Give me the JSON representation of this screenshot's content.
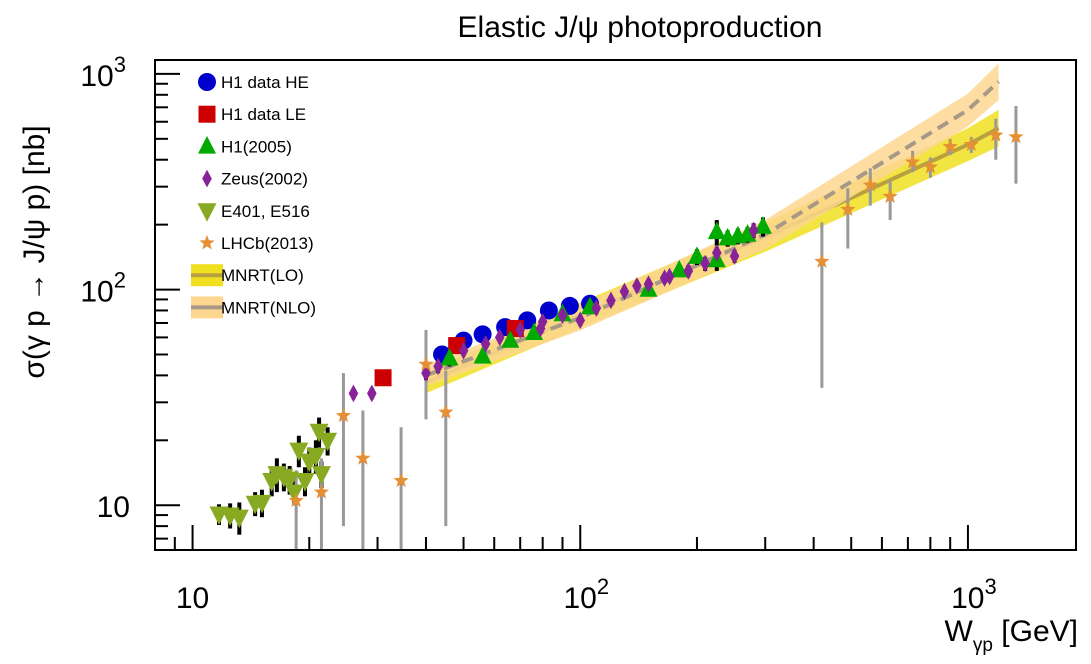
{
  "chart_data": {
    "type": "scatter",
    "title": "Elastic J/ψ photoproduction",
    "xlabel_main": "W",
    "xlabel_sub": "γp",
    "xlabel_unit": " [GeV]",
    "ylabel": "σ(γ p → J/ψ p) [nb]",
    "x_scale": "log",
    "y_scale": "log",
    "xlim": [
      8,
      1900
    ],
    "ylim": [
      6.2,
      1160
    ],
    "grid": false,
    "legend_placement": "top-left",
    "x_ticks": [
      {
        "base": "10",
        "exp": ""
      },
      {
        "base": "10",
        "exp": "2"
      },
      {
        "base": "10",
        "exp": "3"
      }
    ],
    "y_ticks": [
      {
        "base": "10",
        "exp": ""
      },
      {
        "base": "10",
        "exp": "2"
      },
      {
        "base": "10",
        "exp": "3"
      }
    ],
    "legend": [
      {
        "label": "H1 data HE",
        "series": 0
      },
      {
        "label": "H1 data LE",
        "series": 1
      },
      {
        "label": "H1(2005)",
        "series": 2
      },
      {
        "label": "Zeus(2002)",
        "series": 3
      },
      {
        "label": "E401, E516",
        "series": 4
      },
      {
        "label": "LHCb(2013)",
        "series": 5
      },
      {
        "label": "MNRT(LO)",
        "series": 6
      },
      {
        "label": "MNRT(NLO)",
        "series": 7
      }
    ],
    "series": [
      {
        "name": "H1 data HE",
        "marker": "circle",
        "color": "#0000cc",
        "errcolor": "#000000",
        "points": [
          [
            44,
            50,
            3
          ],
          [
            50,
            58,
            3.5
          ],
          [
            56,
            62,
            4
          ],
          [
            64,
            67,
            4
          ],
          [
            73,
            72,
            4.5
          ],
          [
            83,
            80,
            5
          ],
          [
            94,
            84,
            5
          ],
          [
            106,
            86,
            5
          ]
        ]
      },
      {
        "name": "H1 data LE",
        "marker": "square",
        "color": "#cc0000",
        "errcolor": "#000000",
        "points": [
          [
            31,
            39,
            3
          ],
          [
            48,
            55,
            3.5
          ],
          [
            68,
            66,
            4
          ]
        ]
      },
      {
        "name": "H1(2005)",
        "marker": "triangle-up",
        "color": "#00aa00",
        "errcolor": "#000000",
        "points": [
          [
            46,
            48,
            4
          ],
          [
            56,
            49,
            3
          ],
          [
            66,
            58,
            4
          ],
          [
            76,
            63,
            4
          ],
          [
            90,
            77,
            4
          ],
          [
            106,
            83,
            5
          ],
          [
            150,
            100,
            6
          ],
          [
            180,
            123,
            6
          ],
          [
            200,
            142,
            12
          ],
          [
            225,
            185,
            25
          ],
          [
            225,
            137,
            15
          ],
          [
            240,
            173,
            15
          ],
          [
            255,
            177,
            15
          ],
          [
            270,
            180,
            15
          ],
          [
            296,
            196,
            20
          ]
        ]
      },
      {
        "name": "Zeus(2002)",
        "marker": "diamond",
        "color": "#882299",
        "errcolor": "#000000",
        "points": [
          [
            26,
            33,
            2
          ],
          [
            29,
            33,
            2
          ],
          [
            40,
            41,
            3
          ],
          [
            43,
            44,
            3
          ],
          [
            50,
            52,
            3
          ],
          [
            57,
            56,
            3
          ],
          [
            62,
            60,
            3
          ],
          [
            70,
            65,
            3
          ],
          [
            79,
            66,
            3
          ],
          [
            80,
            71,
            3
          ],
          [
            90,
            76,
            4
          ],
          [
            100,
            72,
            4
          ],
          [
            110,
            82,
            5
          ],
          [
            120,
            89,
            5
          ],
          [
            130,
            98,
            5
          ],
          [
            140,
            104,
            6
          ],
          [
            150,
            106,
            6
          ],
          [
            165,
            113,
            6
          ],
          [
            170,
            115,
            7
          ],
          [
            190,
            122,
            8
          ],
          [
            210,
            132,
            10
          ],
          [
            225,
            148,
            10
          ],
          [
            250,
            143,
            10
          ],
          [
            280,
            188,
            15
          ]
        ]
      },
      {
        "name": "E401, E516",
        "marker": "triangle-down",
        "color": "#88aa22",
        "errcolor": "#000000",
        "points": [
          [
            11.7,
            9.1,
            1.0
          ],
          [
            12.5,
            9.0,
            1.2
          ],
          [
            13.2,
            8.8,
            1.5
          ],
          [
            14.5,
            10.2,
            1.3
          ],
          [
            15.1,
            10.3,
            1.5
          ],
          [
            16,
            13,
            2
          ],
          [
            16.5,
            14,
            2.5
          ],
          [
            17.2,
            13.6,
            2
          ],
          [
            17.8,
            13.2,
            2
          ],
          [
            18.3,
            11.5,
            1.5
          ],
          [
            18.8,
            18,
            3
          ],
          [
            19.5,
            13,
            2
          ],
          [
            20,
            16,
            2.5
          ],
          [
            20.8,
            17,
            3
          ],
          [
            21.2,
            22,
            3.5
          ],
          [
            21.5,
            14,
            2
          ],
          [
            22.3,
            20,
            3
          ]
        ]
      },
      {
        "name": "LHCb(2013)",
        "marker": "star",
        "color": "#e69035",
        "errcolor": "#999999",
        "points": [
          [
            18.5,
            10.5,
            4,
            5
          ],
          [
            21.5,
            11.5,
            5,
            7
          ],
          [
            24.5,
            26,
            15,
            18
          ],
          [
            27.5,
            16.5,
            11,
            15
          ],
          [
            34.5,
            13,
            10,
            14
          ],
          [
            40,
            45,
            20,
            20
          ],
          [
            45,
            27,
            15,
            19
          ],
          [
            420,
            135,
            70,
            100
          ],
          [
            490,
            235,
            60,
            80
          ],
          [
            560,
            305,
            60,
            60
          ],
          [
            630,
            270,
            50,
            60
          ],
          [
            720,
            390,
            50,
            40
          ],
          [
            800,
            370,
            40,
            40
          ],
          [
            900,
            460,
            40,
            40
          ],
          [
            1020,
            470,
            40,
            40
          ],
          [
            1180,
            520,
            100,
            120
          ],
          [
            1330,
            510,
            200,
            200
          ]
        ]
      },
      {
        "name": "MNRT(LO)",
        "type": "band",
        "color": "#f0e020",
        "linecolor": "#b8a040",
        "band_frac": 0.12,
        "x": [
          40,
          100,
          300,
          1000,
          1200
        ],
        "y": [
          37,
          76,
          175,
          470,
          560
        ]
      },
      {
        "name": "MNRT(NLO)",
        "type": "band",
        "color": "#fdd790",
        "linecolor": "#a89888",
        "band_frac": 0.12,
        "x": [
          40,
          100,
          300,
          1000,
          1200
        ],
        "y": [
          40,
          74,
          180,
          680,
          920
        ]
      }
    ]
  }
}
